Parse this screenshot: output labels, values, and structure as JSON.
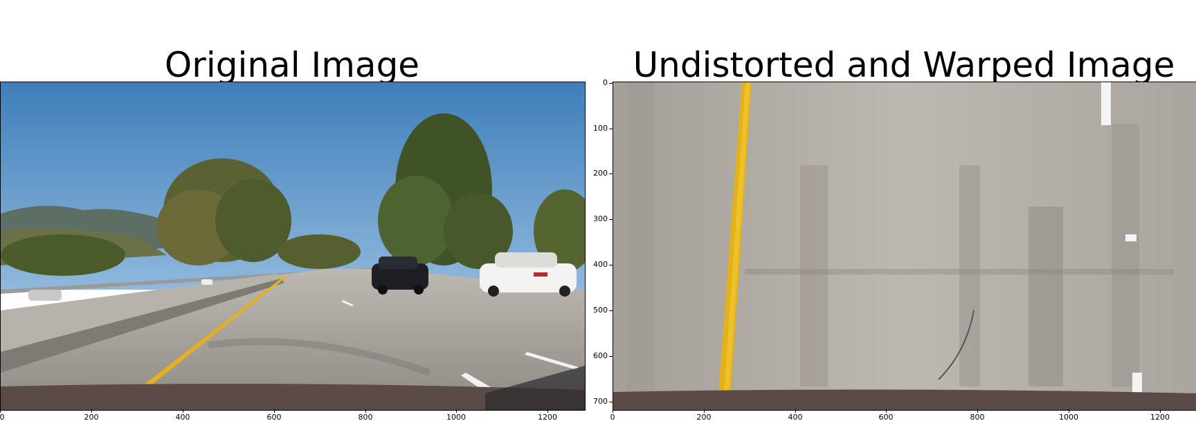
{
  "left_panel": {
    "title": "Original Image",
    "x_ticks": [
      "0",
      "200",
      "400",
      "600",
      "800",
      "1000",
      "1200"
    ],
    "image_description": "dashcam photo of a highway with yellow left lane line, concrete barrier, trees, and two cars"
  },
  "right_panel": {
    "title": "Undistorted and Warped Image",
    "x_ticks": [
      "0",
      "200",
      "400",
      "600",
      "800",
      "1000",
      "1200"
    ],
    "y_ticks": [
      "0",
      "100",
      "200",
      "300",
      "400",
      "500",
      "600",
      "700"
    ],
    "image_description": "bird's-eye warped road surface with a near-vertical yellow lane line on the left"
  },
  "colors": {
    "sky": "#4f8fc6",
    "road": "#a8a39c",
    "lane_yellow": "#e3b21b",
    "tree": "#4a5a2a"
  }
}
